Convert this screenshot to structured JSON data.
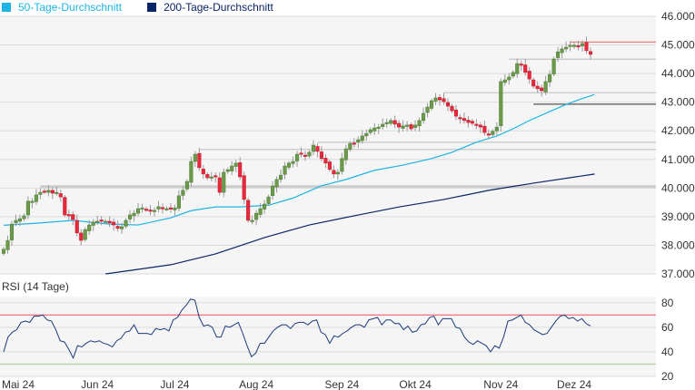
{
  "chart_data": {
    "type": "candlestick",
    "legend": [
      {
        "name": "50-Tage-Durchschnitt",
        "color": "#1eb4e6"
      },
      {
        "name": "200-Tage-Durchschnitt",
        "color": "#0b2468"
      }
    ],
    "price_axis": {
      "ylim": [
        37,
        46
      ],
      "ticks": [
        "37.000",
        "38.000",
        "39.000",
        "40.000",
        "41.000",
        "42.000",
        "43.000",
        "44.000",
        "45.000",
        "46.000"
      ],
      "tick_values": [
        37,
        38,
        39,
        40,
        41,
        42,
        43,
        44,
        45,
        46
      ]
    },
    "x_labels": [
      {
        "label": "Mai 24",
        "day": 0
      },
      {
        "label": "Jun 24",
        "day": 23
      },
      {
        "label": "Jul 24",
        "day": 42
      },
      {
        "label": "Aug 24",
        "day": 62
      },
      {
        "label": "Sep 24",
        "day": 83
      },
      {
        "label": "Okt 24",
        "day": 101
      },
      {
        "label": "Nov 24",
        "day": 122
      },
      {
        "label": "Dez 24",
        "day": 140
      }
    ],
    "closes": [
      37.86,
      38.17,
      38.74,
      38.87,
      38.93,
      39.03,
      39.54,
      39.54,
      39.76,
      39.85,
      39.88,
      39.92,
      39.82,
      39.85,
      39.69,
      39.06,
      39.03,
      38.9,
      38.43,
      38.17,
      38.55,
      38.71,
      38.81,
      38.84,
      38.87,
      38.84,
      38.78,
      38.71,
      38.59,
      38.65,
      38.87,
      39.06,
      39.12,
      39.28,
      39.31,
      39.25,
      39.19,
      39.22,
      39.35,
      39.28,
      39.28,
      39.28,
      39.31,
      39.73,
      39.92,
      40.23,
      40.93,
      41.18,
      40.71,
      40.49,
      40.36,
      40.39,
      40.39,
      39.85,
      40.55,
      40.64,
      40.77,
      40.87,
      40.39,
      39.6,
      38.87,
      38.87,
      39.12,
      39.28,
      39.44,
      39.69,
      40.07,
      40.3,
      40.45,
      40.77,
      40.87,
      40.93,
      41.18,
      41.18,
      41.12,
      41.25,
      41.5,
      41.28,
      41.03,
      40.87,
      40.65,
      40.49,
      40.55,
      41.03,
      41.37,
      41.56,
      41.56,
      41.69,
      41.82,
      41.91,
      42.04,
      42.1,
      42.13,
      42.23,
      42.29,
      42.36,
      42.23,
      42.13,
      42.17,
      42.2,
      42.07,
      42.2,
      42.36,
      42.61,
      42.83,
      43.05,
      43.15,
      43.08,
      43.02,
      42.86,
      42.7,
      42.51,
      42.45,
      42.36,
      42.29,
      42.26,
      42.2,
      42.13,
      41.94,
      41.88,
      41.98,
      42.13,
      43.72,
      43.78,
      43.88,
      44.04,
      44.35,
      44.29,
      44.04,
      43.81,
      43.56,
      43.47,
      43.4,
      43.72,
      43.97,
      44.51,
      44.76,
      44.86,
      44.92,
      44.99,
      44.99,
      44.95,
      45.05,
      44.8,
      44.67
    ],
    "ma50": [
      [
        0,
        38.7
      ],
      [
        8,
        38.77
      ],
      [
        17,
        38.87
      ],
      [
        26,
        38.74
      ],
      [
        33,
        38.71
      ],
      [
        41,
        38.96
      ],
      [
        46,
        39.21
      ],
      [
        52,
        39.34
      ],
      [
        58,
        39.34
      ],
      [
        65,
        39.4
      ],
      [
        71,
        39.65
      ],
      [
        78,
        40.08
      ],
      [
        84,
        40.3
      ],
      [
        91,
        40.62
      ],
      [
        98,
        40.8
      ],
      [
        105,
        41.03
      ],
      [
        110,
        41.25
      ],
      [
        116,
        41.6
      ],
      [
        121,
        41.82
      ],
      [
        125,
        42.07
      ],
      [
        129,
        42.36
      ],
      [
        133,
        42.61
      ],
      [
        138,
        42.92
      ],
      [
        141,
        43.08
      ],
      [
        145,
        43.27
      ]
    ],
    "ma200": [
      [
        25,
        37.0
      ],
      [
        41,
        37.32
      ],
      [
        52,
        37.7
      ],
      [
        64,
        38.27
      ],
      [
        75,
        38.71
      ],
      [
        86,
        39.03
      ],
      [
        97,
        39.34
      ],
      [
        108,
        39.6
      ],
      [
        119,
        39.92
      ],
      [
        130,
        40.17
      ],
      [
        145,
        40.49
      ]
    ],
    "levels": [
      {
        "value": 45.1,
        "from_day": 139,
        "color": "#f08080"
      },
      {
        "value": 44.5,
        "from_day": 124,
        "color": "#c8c8c8"
      },
      {
        "value": 43.33,
        "from_day": 108,
        "color": "#c8c8c8"
      },
      {
        "value": 42.93,
        "from_day": 130,
        "color": "#555555"
      },
      {
        "value": 41.6,
        "from_day": 77,
        "color": "#c8c8c8"
      },
      {
        "value": 41.35,
        "from_day": 48,
        "color": "#c8c8c8"
      },
      {
        "value": 40.05,
        "from_day": 9,
        "color": "#cccccc"
      }
    ],
    "rsi": {
      "title": "RSI (14 Tage)",
      "ylim": [
        20,
        85
      ],
      "ticks": [
        "20",
        "40",
        "60",
        "80"
      ],
      "tick_values": [
        20,
        40,
        60,
        80
      ],
      "overbought": 70,
      "oversold": 30,
      "values": [
        40,
        52,
        56,
        58,
        64,
        65,
        64,
        69,
        69,
        70,
        66,
        65,
        58,
        49,
        48,
        42,
        35,
        45,
        44,
        47,
        49,
        48,
        49,
        47,
        46,
        44,
        49,
        51,
        56,
        57,
        62,
        55,
        55,
        55,
        54,
        59,
        58,
        59,
        57,
        66,
        68,
        74,
        78,
        83,
        82,
        68,
        61,
        62,
        60,
        52,
        52,
        61,
        60,
        62,
        64,
        55,
        45,
        36,
        39,
        47,
        47,
        52,
        57,
        60,
        62,
        62,
        59,
        63,
        64,
        64,
        62,
        65,
        66,
        56,
        54,
        47,
        53,
        52,
        55,
        57,
        60,
        62,
        62,
        60,
        66,
        67,
        68,
        62,
        66,
        66,
        63,
        63,
        58,
        61,
        56,
        57,
        62,
        63,
        68,
        69,
        62,
        67,
        67,
        67,
        60,
        59,
        52,
        48,
        46,
        49,
        47,
        45,
        40,
        45,
        43,
        52,
        65,
        66,
        68,
        70,
        64,
        62,
        58,
        56,
        54,
        55,
        60,
        65,
        69,
        70,
        67,
        68,
        65,
        67,
        63,
        61
      ]
    }
  }
}
